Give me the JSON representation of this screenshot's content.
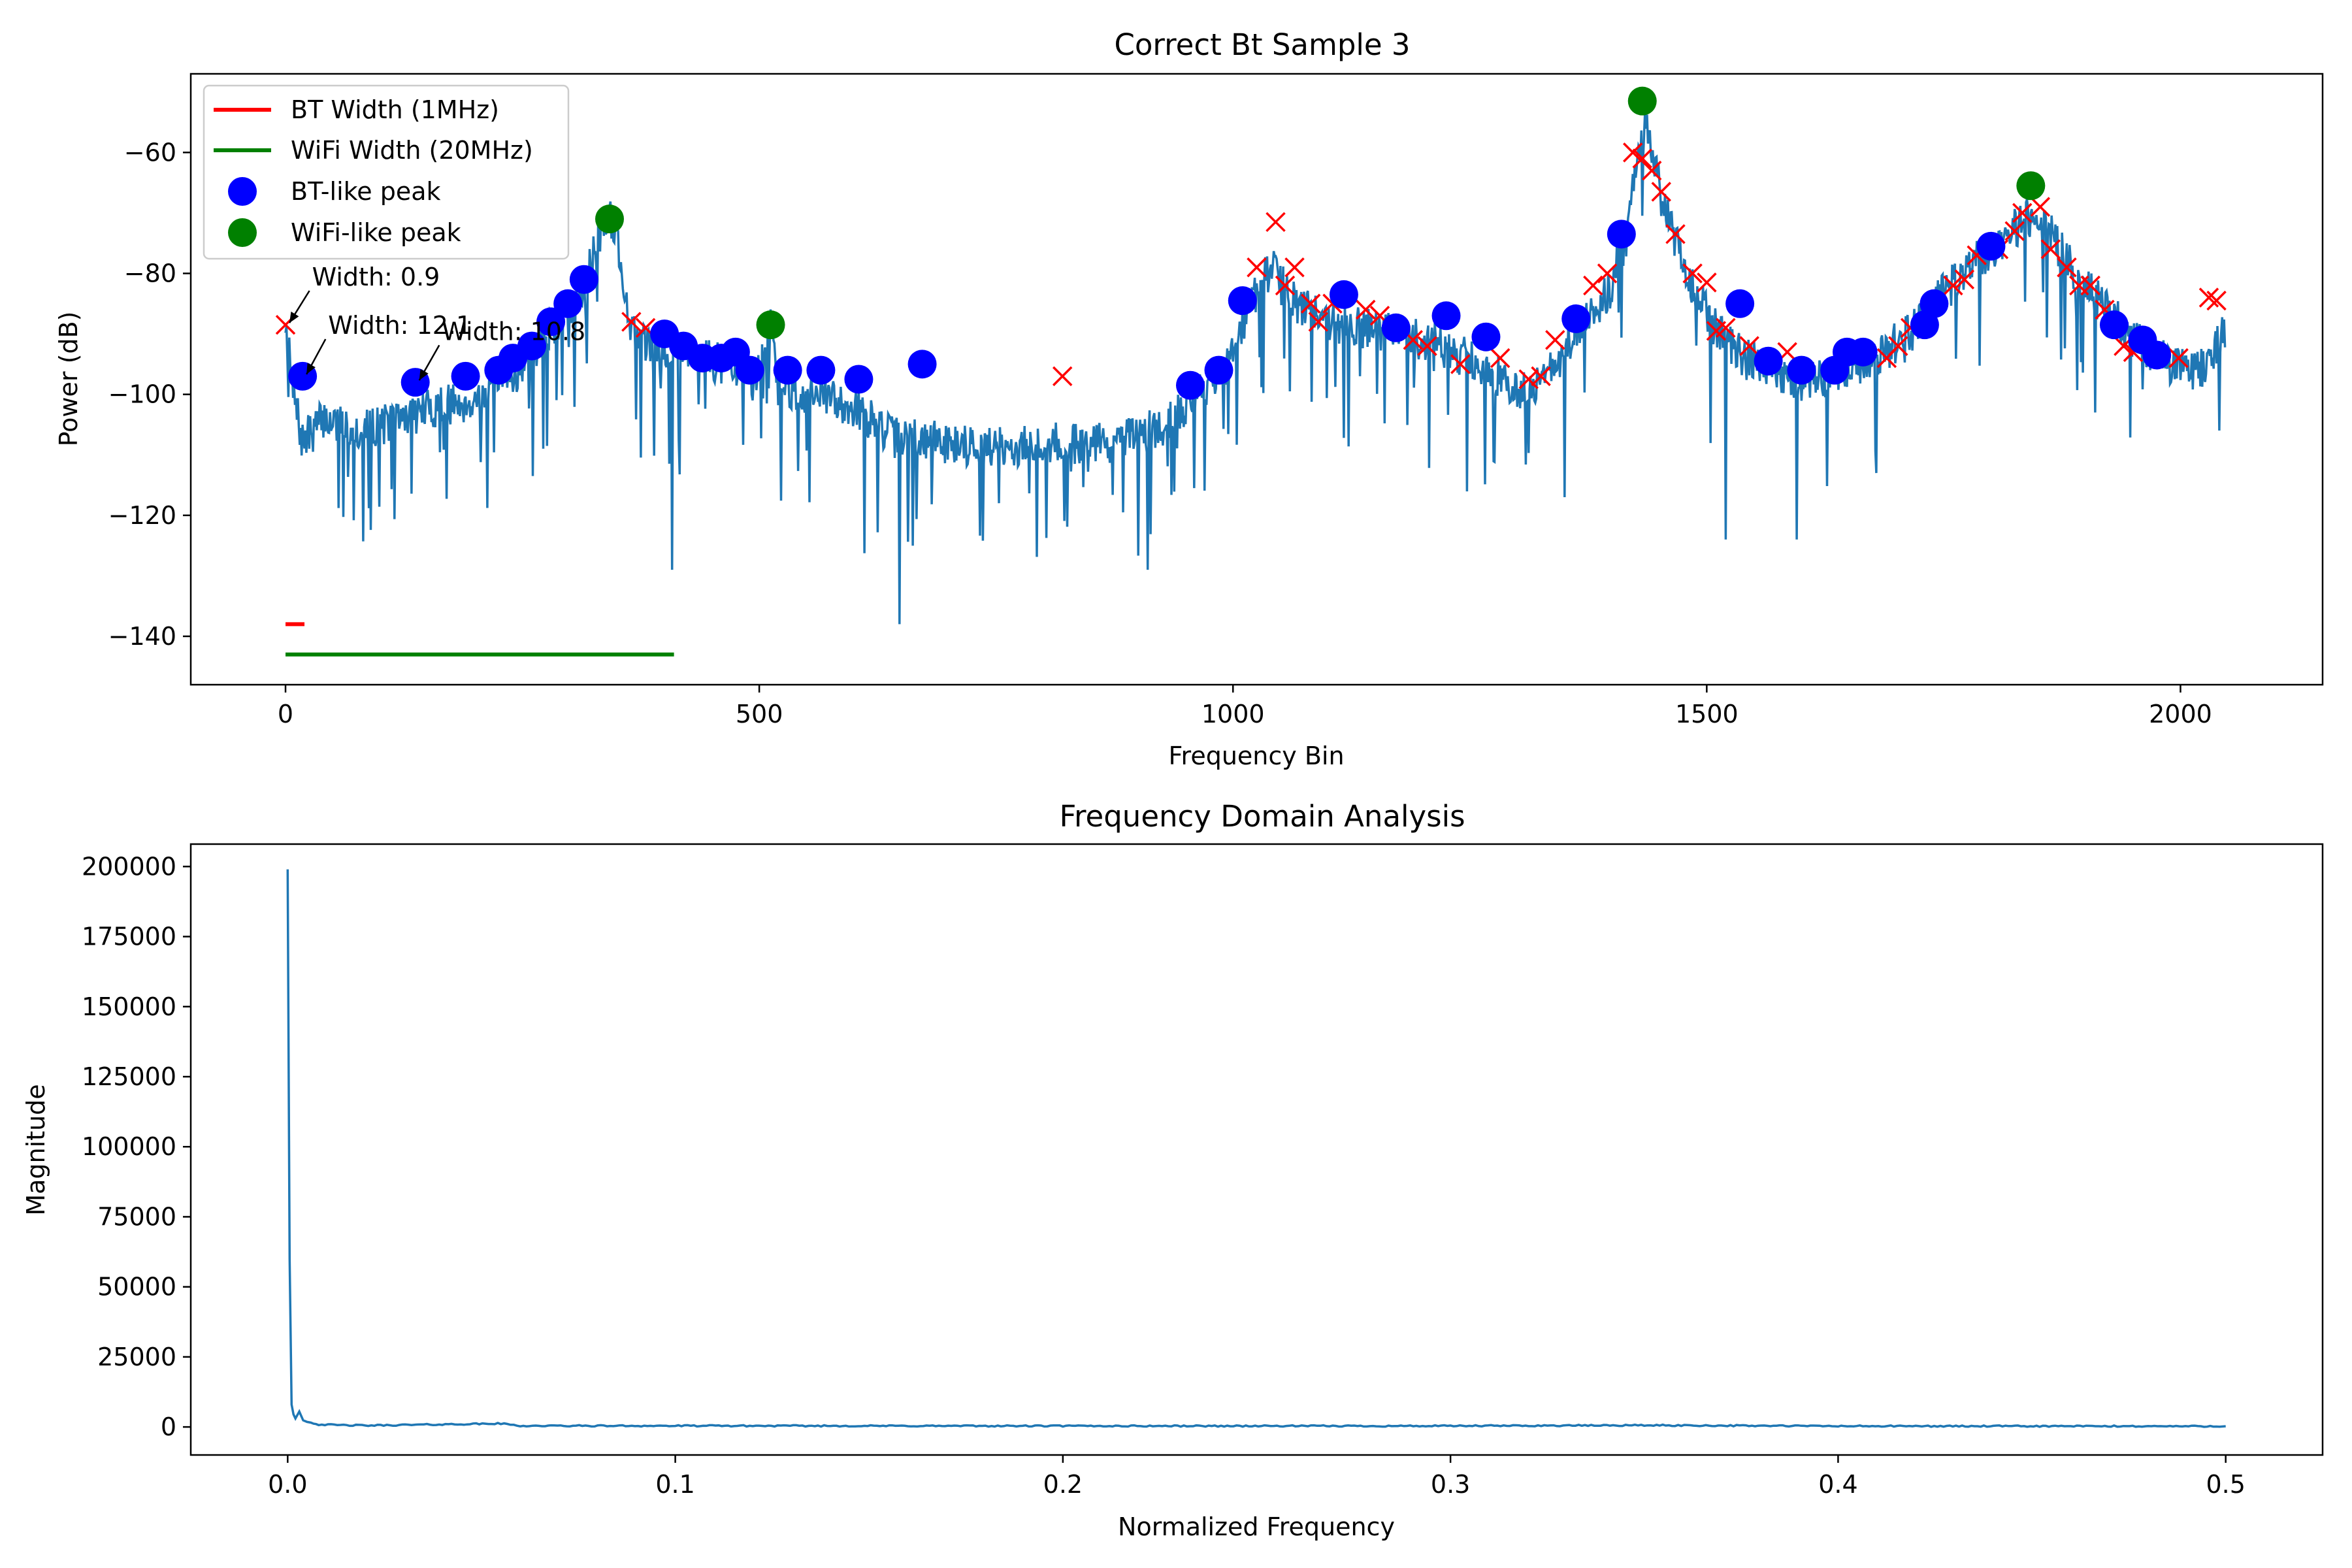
{
  "chart_data": [
    {
      "type": "line",
      "title": "Correct Bt Sample 3",
      "xlabel": "Frequency Bin",
      "ylabel": "Power (dB)",
      "xlim": [
        -100,
        2150
      ],
      "ylim": [
        -148,
        -47
      ],
      "xticks": [
        0,
        500,
        1000,
        1500,
        2000
      ],
      "yticks": [
        -60,
        -80,
        -100,
        -120,
        -140
      ],
      "line_color": "#1f77b4",
      "legend_position": "upper-left",
      "legend": [
        {
          "label": "BT Width (1MHz)",
          "kind": "line",
          "color": "#ff0000"
        },
        {
          "label": "WiFi Width (20MHz)",
          "kind": "line",
          "color": "#008000"
        },
        {
          "label": "BT-like peak",
          "kind": "marker",
          "color": "#0000ff"
        },
        {
          "label": "WiFi-like peak",
          "kind": "marker",
          "color": "#008000"
        }
      ],
      "spectrum_anchors": [
        [
          0,
          -88
        ],
        [
          8,
          -100
        ],
        [
          18,
          -108
        ],
        [
          40,
          -104
        ],
        [
          80,
          -106
        ],
        [
          120,
          -104
        ],
        [
          160,
          -102
        ],
        [
          200,
          -101
        ],
        [
          240,
          -97
        ],
        [
          270,
          -91
        ],
        [
          300,
          -86
        ],
        [
          320,
          -80
        ],
        [
          335,
          -72
        ],
        [
          342,
          -70
        ],
        [
          350,
          -74
        ],
        [
          360,
          -86
        ],
        [
          372,
          -91
        ],
        [
          390,
          -93
        ],
        [
          420,
          -92
        ],
        [
          440,
          -94
        ],
        [
          480,
          -96
        ],
        [
          500,
          -97
        ],
        [
          512,
          -88
        ],
        [
          520,
          -99
        ],
        [
          560,
          -100
        ],
        [
          600,
          -102
        ],
        [
          640,
          -107
        ],
        [
          700,
          -108
        ],
        [
          760,
          -109
        ],
        [
          820,
          -108
        ],
        [
          880,
          -108
        ],
        [
          930,
          -105
        ],
        [
          960,
          -100
        ],
        [
          990,
          -97
        ],
        [
          1010,
          -88
        ],
        [
          1030,
          -82
        ],
        [
          1040,
          -79
        ],
        [
          1060,
          -84
        ],
        [
          1100,
          -88
        ],
        [
          1140,
          -89
        ],
        [
          1180,
          -90
        ],
        [
          1220,
          -92
        ],
        [
          1260,
          -95
        ],
        [
          1300,
          -99
        ],
        [
          1320,
          -99
        ],
        [
          1340,
          -95
        ],
        [
          1370,
          -88
        ],
        [
          1400,
          -82
        ],
        [
          1415,
          -74
        ],
        [
          1425,
          -64
        ],
        [
          1435,
          -56
        ],
        [
          1440,
          -58
        ],
        [
          1450,
          -66
        ],
        [
          1465,
          -74
        ],
        [
          1480,
          -81
        ],
        [
          1510,
          -89
        ],
        [
          1540,
          -94
        ],
        [
          1580,
          -97
        ],
        [
          1610,
          -98
        ],
        [
          1640,
          -96
        ],
        [
          1680,
          -94
        ],
        [
          1710,
          -90
        ],
        [
          1740,
          -85
        ],
        [
          1770,
          -80
        ],
        [
          1800,
          -76
        ],
        [
          1830,
          -72
        ],
        [
          1845,
          -70
        ],
        [
          1860,
          -73
        ],
        [
          1890,
          -80
        ],
        [
          1920,
          -86
        ],
        [
          1960,
          -92
        ],
        [
          1990,
          -95
        ],
        [
          2020,
          -96
        ],
        [
          2045,
          -90
        ]
      ],
      "bt_peaks": [
        [
          18,
          -97
        ],
        [
          137,
          -98
        ],
        [
          190,
          -97
        ],
        [
          225,
          -96
        ],
        [
          240,
          -94
        ],
        [
          260,
          -92
        ],
        [
          280,
          -88
        ],
        [
          298,
          -85
        ],
        [
          315,
          -81
        ],
        [
          400,
          -90
        ],
        [
          420,
          -92
        ],
        [
          440,
          -94
        ],
        [
          460,
          -94
        ],
        [
          475,
          -93
        ],
        [
          490,
          -96
        ],
        [
          530,
          -96
        ],
        [
          565,
          -96
        ],
        [
          605,
          -97.5
        ],
        [
          672,
          -95
        ],
        [
          955,
          -98.5
        ],
        [
          985,
          -96
        ],
        [
          1010,
          -84.5
        ],
        [
          1117,
          -83.5
        ],
        [
          1172,
          -89
        ],
        [
          1225,
          -87
        ],
        [
          1267,
          -90.5
        ],
        [
          1362,
          -87.5
        ],
        [
          1410,
          -73.5
        ],
        [
          1535,
          -85
        ],
        [
          1565,
          -94.5
        ],
        [
          1600,
          -96
        ],
        [
          1635,
          -96
        ],
        [
          1648,
          -93
        ],
        [
          1665,
          -93
        ],
        [
          1730,
          -88.5
        ],
        [
          1740,
          -85
        ],
        [
          1800,
          -75.5
        ],
        [
          1930,
          -88.5
        ],
        [
          1960,
          -91
        ],
        [
          1975,
          -93.5
        ]
      ],
      "wifi_peaks": [
        [
          342,
          -71
        ],
        [
          512,
          -88.5
        ],
        [
          1432,
          -51.5
        ],
        [
          1842,
          -65.5
        ]
      ],
      "x_markers": [
        [
          0,
          -88.5
        ],
        [
          365,
          -88
        ],
        [
          380,
          -89
        ],
        [
          820,
          -97
        ],
        [
          1025,
          -79
        ],
        [
          1045,
          -71.5
        ],
        [
          1055,
          -82
        ],
        [
          1065,
          -79
        ],
        [
          1082,
          -85
        ],
        [
          1090,
          -88
        ],
        [
          1105,
          -85
        ],
        [
          1140,
          -86
        ],
        [
          1155,
          -87
        ],
        [
          1190,
          -91
        ],
        [
          1205,
          -92
        ],
        [
          1240,
          -95
        ],
        [
          1282,
          -94
        ],
        [
          1312,
          -97.5
        ],
        [
          1325,
          -97
        ],
        [
          1340,
          -91
        ],
        [
          1380,
          -82
        ],
        [
          1395,
          -80
        ],
        [
          1422,
          -60
        ],
        [
          1432,
          -61
        ],
        [
          1442,
          -63
        ],
        [
          1452,
          -66.5
        ],
        [
          1467,
          -73.5
        ],
        [
          1485,
          -80
        ],
        [
          1500,
          -81.5
        ],
        [
          1510,
          -89.5
        ],
        [
          1520,
          -89
        ],
        [
          1545,
          -92
        ],
        [
          1585,
          -93
        ],
        [
          1690,
          -94
        ],
        [
          1702,
          -92
        ],
        [
          1715,
          -89
        ],
        [
          1760,
          -82
        ],
        [
          1772,
          -81
        ],
        [
          1785,
          -77
        ],
        [
          1808,
          -76
        ],
        [
          1825,
          -73
        ],
        [
          1833,
          -70
        ],
        [
          1852,
          -69
        ],
        [
          1863,
          -76
        ],
        [
          1880,
          -79
        ],
        [
          1893,
          -82
        ],
        [
          1905,
          -82
        ],
        [
          1920,
          -86
        ],
        [
          1940,
          -92
        ],
        [
          1950,
          -93
        ],
        [
          1998,
          -94
        ],
        [
          2030,
          -84
        ],
        [
          2038,
          -84.5
        ]
      ],
      "bt_width_bar": {
        "x": [
          0,
          20
        ],
        "y": -138,
        "color": "#ff0000"
      },
      "wifi_width_bar": {
        "x": [
          0,
          410
        ],
        "y": -143,
        "color": "#008000"
      },
      "annotations": [
        {
          "text": "Width: 0.9",
          "xy": [
            0,
            -88.5
          ],
          "xytext": [
            28,
            -82
          ]
        },
        {
          "text": "Width: 12.1",
          "xy": [
            18,
            -97
          ],
          "xytext": [
            45,
            -90
          ]
        },
        {
          "text": "Width: 10.8",
          "xy": [
            137,
            -98
          ],
          "xytext": [
            165,
            -91
          ]
        }
      ]
    },
    {
      "type": "line",
      "title": "Frequency Domain Analysis",
      "xlabel": "Normalized Frequency",
      "ylabel": "Magnitude",
      "xlim": [
        -0.025,
        0.525
      ],
      "ylim": [
        -10000,
        208000
      ],
      "xticks": [
        "0.0",
        "0.1",
        "0.2",
        "0.3",
        "0.4",
        "0.5"
      ],
      "yticks": [
        "0",
        "25000",
        "50000",
        "75000",
        "100000",
        "125000",
        "150000",
        "175000",
        "200000"
      ],
      "line_color": "#1f77b4",
      "x": [
        0.0,
        0.0005,
        0.001,
        0.0015,
        0.002,
        0.003,
        0.004,
        0.005,
        0.006,
        0.008,
        0.012,
        0.02,
        0.055,
        0.06,
        0.1,
        0.2,
        0.3,
        0.35,
        0.4,
        0.5
      ],
      "values": [
        199000,
        60000,
        8000,
        4500,
        3000,
        5500,
        2500,
        2000,
        1500,
        900,
        700,
        500,
        1200,
        400,
        400,
        350,
        350,
        600,
        300,
        250
      ]
    }
  ]
}
